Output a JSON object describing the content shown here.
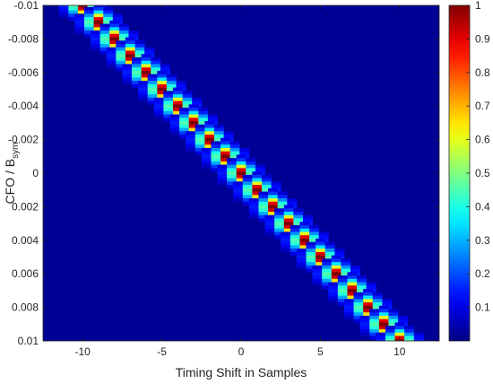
{
  "chart_data": {
    "type": "heatmap",
    "title": "",
    "xlabel": "Timing Shift in Samples",
    "ylabel": "CFO / B",
    "ylabel_sub": "sym",
    "xlim": [
      -12.5,
      12.5
    ],
    "ylim": [
      -0.01,
      0.01
    ],
    "y_reversed": true,
    "x_ticks": [
      -10,
      -5,
      0,
      5,
      10
    ],
    "x_tick_labels": [
      "-10",
      "-5",
      "0",
      "5",
      "10"
    ],
    "y_ticks": [
      -0.01,
      -0.008,
      -0.006,
      -0.004,
      -0.002,
      0,
      0.002,
      0.004,
      0.006,
      0.008,
      0.01
    ],
    "y_tick_labels": [
      "-0.01",
      "-0.008",
      "-0.006",
      "-0.004",
      "-0.002",
      "0",
      "0.002",
      "0.004",
      "0.006",
      "0.008",
      "0.01"
    ],
    "colorbar": {
      "colormap": "jet",
      "range": [
        0,
        1
      ],
      "ticks": [
        0.1,
        0.2,
        0.3,
        0.4,
        0.5,
        0.6,
        0.7,
        0.8,
        0.9,
        1
      ],
      "tick_labels": [
        "0.1",
        "0.2",
        "0.3",
        "0.4",
        "0.5",
        "0.6",
        "0.7",
        "0.8",
        "0.9",
        "1"
      ]
    },
    "background_value": 0.02,
    "peaks": [
      {
        "x": -10,
        "y": -0.01,
        "value": 1
      },
      {
        "x": -9,
        "y": -0.009,
        "value": 1
      },
      {
        "x": -8,
        "y": -0.008,
        "value": 1
      },
      {
        "x": -7,
        "y": -0.007,
        "value": 1
      },
      {
        "x": -6,
        "y": -0.006,
        "value": 1
      },
      {
        "x": -5,
        "y": -0.005,
        "value": 1
      },
      {
        "x": -4,
        "y": -0.004,
        "value": 1
      },
      {
        "x": -3,
        "y": -0.003,
        "value": 1
      },
      {
        "x": -2,
        "y": -0.002,
        "value": 1
      },
      {
        "x": -1,
        "y": -0.001,
        "value": 1
      },
      {
        "x": 0,
        "y": 0,
        "value": 1
      },
      {
        "x": 1,
        "y": 0.001,
        "value": 1
      },
      {
        "x": 2,
        "y": 0.002,
        "value": 1
      },
      {
        "x": 3,
        "y": 0.003,
        "value": 1
      },
      {
        "x": 4,
        "y": 0.004,
        "value": 1
      },
      {
        "x": 5,
        "y": 0.005,
        "value": 1
      },
      {
        "x": 6,
        "y": 0.006,
        "value": 1
      },
      {
        "x": 7,
        "y": 0.007,
        "value": 1
      },
      {
        "x": 8,
        "y": 0.008,
        "value": 1
      },
      {
        "x": 9,
        "y": 0.009,
        "value": 1
      },
      {
        "x": 10,
        "y": 0.01,
        "value": 1
      }
    ]
  }
}
